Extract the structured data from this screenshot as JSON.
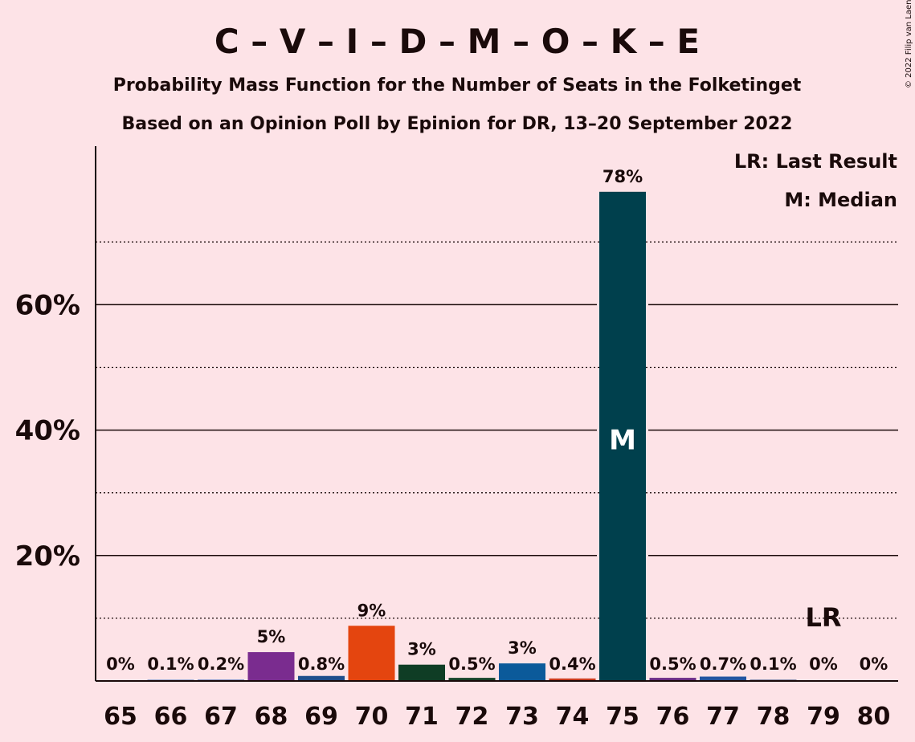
{
  "chart_data": {
    "type": "bar",
    "title": "C – V – I – D – M – O – K – E",
    "subtitle": "Probability Mass Function for the Number of Seats in the Folketinget",
    "subtitle2": "Based on an Opinion Poll by Epinion for DR, 13–20 September 2022",
    "copyright": "© 2022 Filip van Laenen",
    "categories": [
      "65",
      "66",
      "67",
      "68",
      "69",
      "70",
      "71",
      "72",
      "73",
      "74",
      "75",
      "76",
      "77",
      "78",
      "79",
      "80"
    ],
    "values": [
      0,
      0.1,
      0.2,
      4.6,
      0.8,
      8.8,
      2.6,
      0.5,
      2.8,
      0.4,
      78,
      0.5,
      0.7,
      0.1,
      0,
      0
    ],
    "data_labels": [
      "0%",
      "0.1%",
      "0.2%",
      "5%",
      "0.8%",
      "9%",
      "3%",
      "0.5%",
      "3%",
      "0.4%",
      "78%",
      "0.5%",
      "0.7%",
      "0.1%",
      "0%",
      "0%"
    ],
    "bar_colors": [
      "#5b2c8a",
      "#3b6cb0",
      "#2f5aa8",
      "#7a2c8f",
      "#1f4e8c",
      "#e4450f",
      "#0f3d25",
      "#17432a",
      "#0b5a9a",
      "#c9391c",
      "#00404d",
      "#6b2c86",
      "#2255a0",
      "#1a3e72",
      "#1a3e72",
      "#1a3e72"
    ],
    "y_ticks": [
      "20%",
      "40%",
      "60%"
    ],
    "y_tick_values": [
      20,
      40,
      60
    ],
    "ylim": [
      0,
      85
    ],
    "dotted_grid_values": [
      10,
      30,
      50,
      70
    ],
    "median_category": "75",
    "median_label": "M",
    "last_result_category": "79",
    "last_result_label": "LR",
    "legend": {
      "last_result": "LR: Last Result",
      "median": "M: Median",
      "placement": "top-right"
    }
  }
}
